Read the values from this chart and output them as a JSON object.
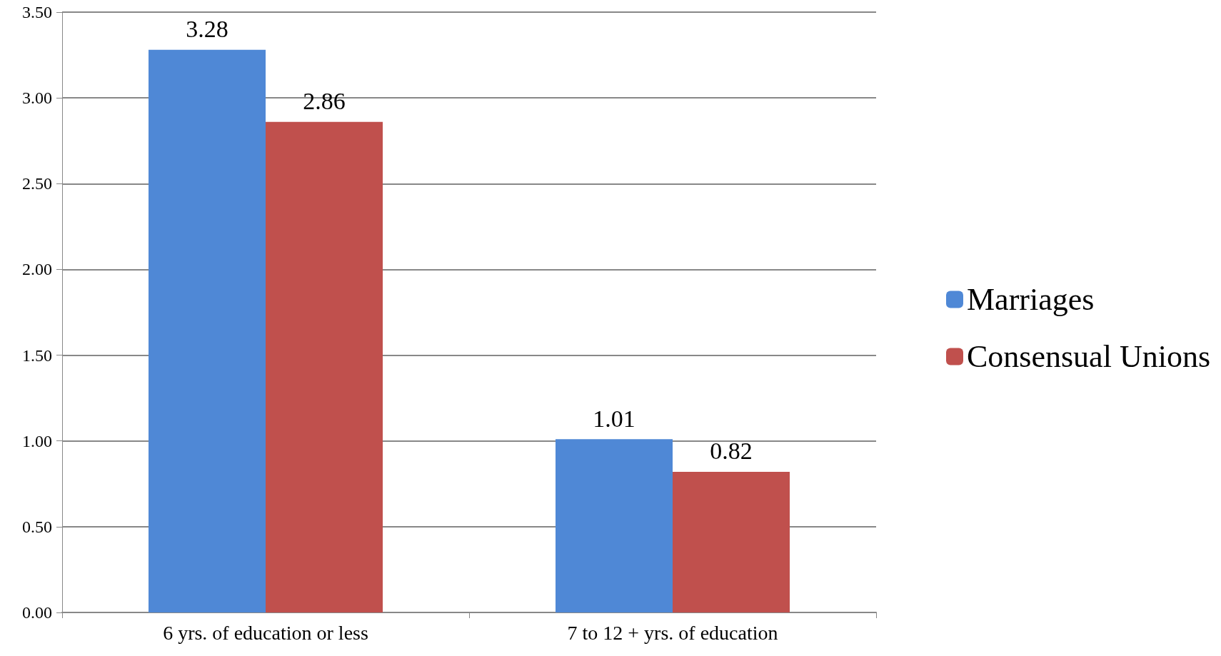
{
  "chart_data": {
    "type": "bar",
    "categories": [
      "6 yrs. of education or less",
      "7 to 12 + yrs. of education"
    ],
    "series": [
      {
        "name": "Marriages",
        "color": "#4f88d6",
        "values": [
          3.28,
          1.01
        ]
      },
      {
        "name": "Consensual Unions",
        "color": "#c0504d",
        "values": [
          2.86,
          0.82
        ]
      }
    ],
    "ylim": [
      0,
      3.5
    ],
    "yticks": [
      {
        "value": 0,
        "label": "0.00"
      },
      {
        "value": 0.5,
        "label": "0.50"
      },
      {
        "value": 1,
        "label": "1.00"
      },
      {
        "value": 1.5,
        "label": "1.50"
      },
      {
        "value": 2,
        "label": "2.00"
      },
      {
        "value": 2.5,
        "label": "2.50"
      },
      {
        "value": 3,
        "label": "3.00"
      },
      {
        "value": 3.5,
        "label": "3.50"
      }
    ],
    "grid": "y",
    "legend": "right",
    "data_labels": true
  }
}
